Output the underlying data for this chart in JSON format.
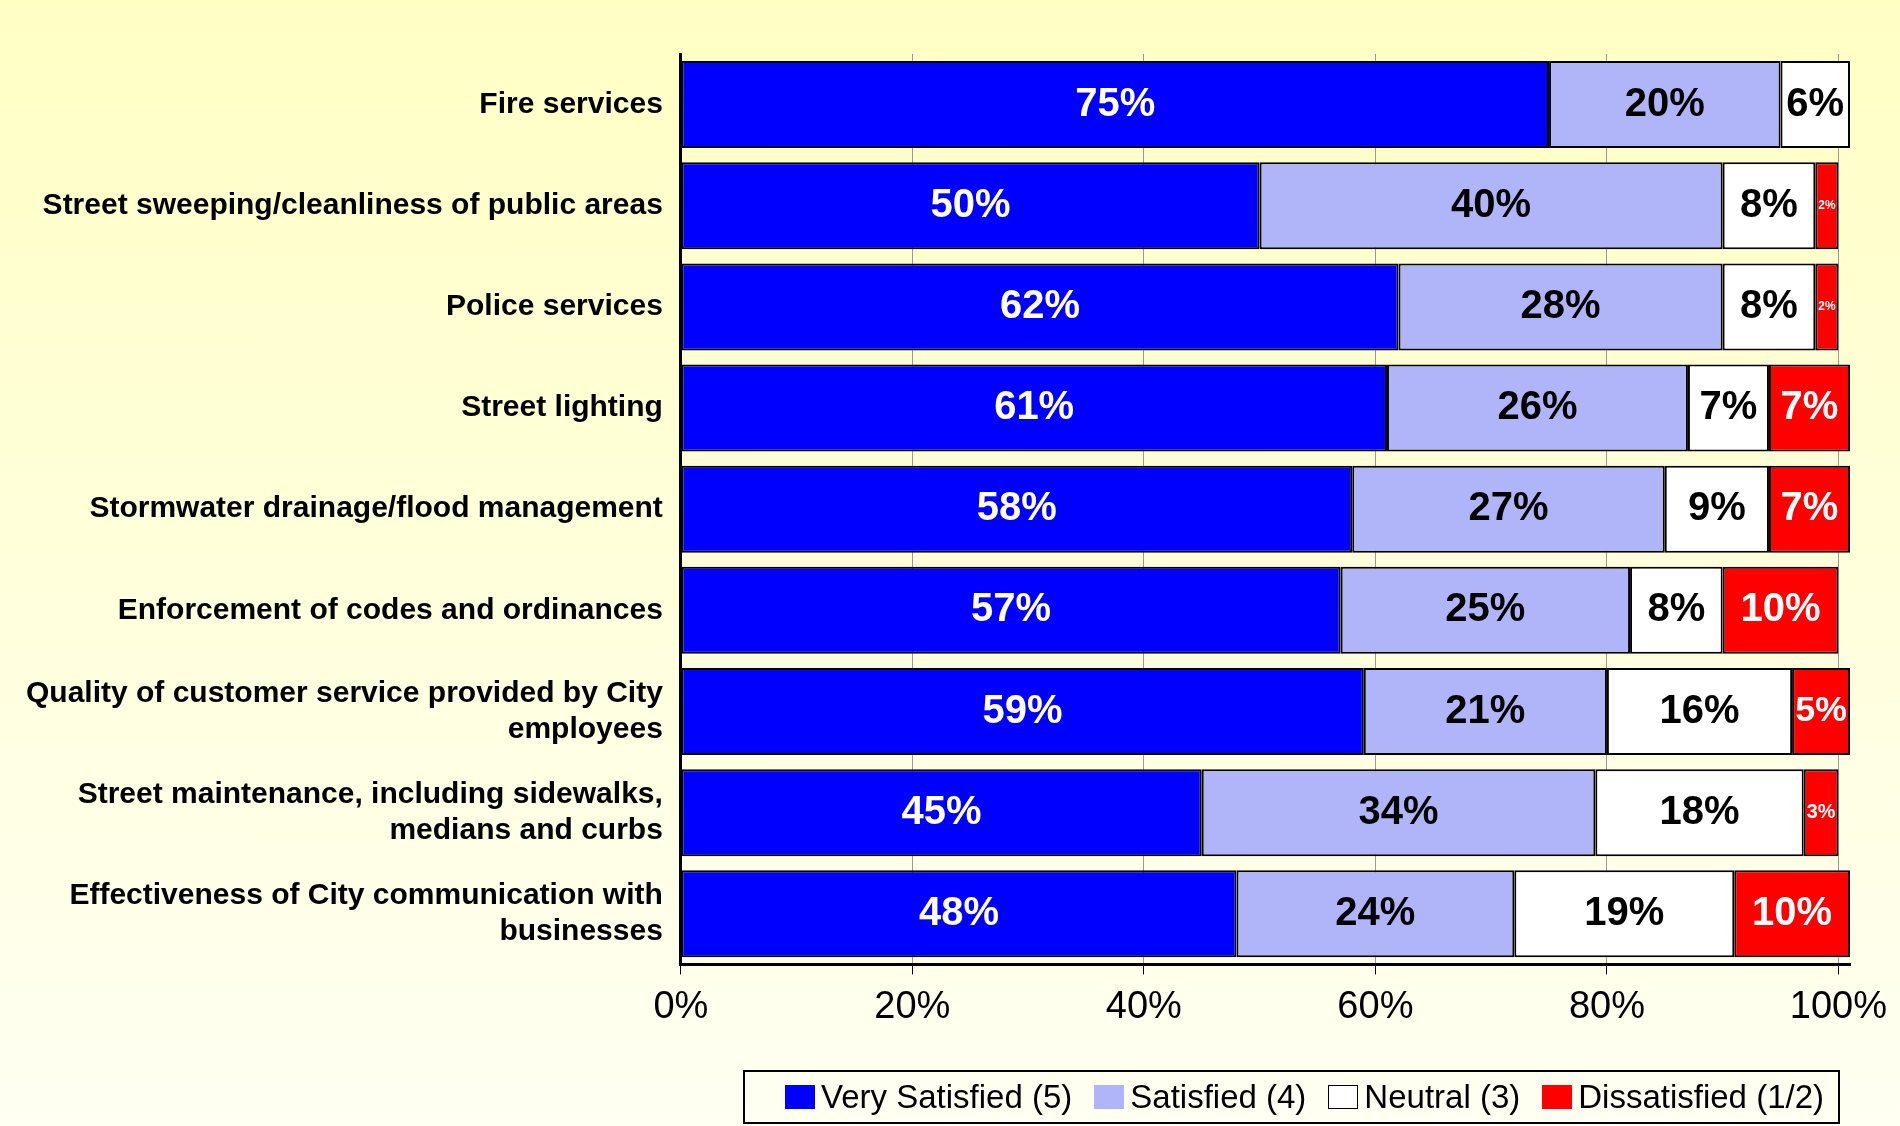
{
  "chart_data": {
    "type": "bar",
    "orientation": "horizontal",
    "stacked": true,
    "grid": "x",
    "legend": "bottom",
    "categories": [
      "Fire services",
      "Street sweeping/cleanliness of public areas",
      "Police services",
      "Street lighting",
      "Stormwater drainage/flood management",
      "Enforcement of codes and ordinances",
      "Quality of customer service provided by City employees",
      "Street maintenance, including sidewalks, medians and curbs",
      "Effectiveness of City communication with businesses"
    ],
    "xlim": [
      0,
      101
    ],
    "xticks": [
      {
        "value": 0,
        "label": "0%"
      },
      {
        "value": 20,
        "label": "20%"
      },
      {
        "value": 40,
        "label": "40%"
      },
      {
        "value": 60,
        "label": "60%"
      },
      {
        "value": 80,
        "label": "80%"
      },
      {
        "value": 100,
        "label": "100%"
      }
    ],
    "series": [
      {
        "name": "Very Satisfied (5)",
        "color": "#0000ff",
        "values": [
          75,
          50,
          62,
          61,
          58,
          57,
          59,
          45,
          48
        ],
        "value_labels": [
          "75%",
          "50%",
          "62%",
          "61%",
          "58%",
          "57%",
          "59%",
          "45%",
          "48%"
        ]
      },
      {
        "name": "Satisfied (4)",
        "color": "#b0b4f8",
        "values": [
          20,
          40,
          28,
          26,
          27,
          25,
          21,
          34,
          24
        ],
        "value_labels": [
          "20%",
          "40%",
          "28%",
          "26%",
          "27%",
          "25%",
          "21%",
          "34%",
          "24%"
        ]
      },
      {
        "name": "Neutral (3)",
        "color": "#ffffff",
        "values": [
          6,
          8,
          8,
          7,
          9,
          8,
          16,
          18,
          19
        ],
        "value_labels": [
          "6%",
          "8%",
          "8%",
          "7%",
          "9%",
          "8%",
          "16%",
          "18%",
          "19%"
        ]
      },
      {
        "name": "Dissatisfied (1/2)",
        "color": "#ff0000",
        "values": [
          null,
          2,
          2,
          7,
          7,
          10,
          5,
          3,
          10
        ],
        "value_labels": [
          null,
          "2%",
          "2%",
          "7%",
          "7%",
          "10%",
          "5%",
          "3%",
          "10%"
        ]
      }
    ]
  }
}
